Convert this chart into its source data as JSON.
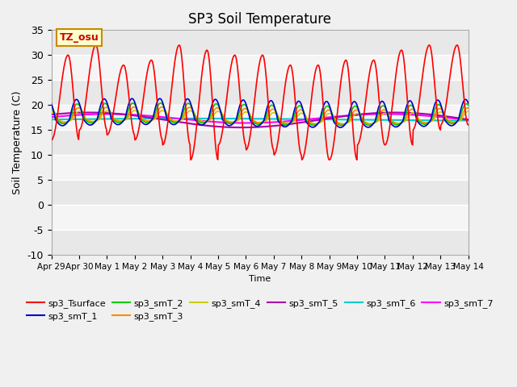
{
  "title": "SP3 Soil Temperature",
  "ylabel": "Soil Temperature (C)",
  "xlabel": "Time",
  "ylim": [
    -10,
    35
  ],
  "xlim": [
    0,
    15
  ],
  "background_color": "#d8d8d8",
  "fig_bg": "#f0f0f0",
  "tz_label": "TZ_osu",
  "tz_color": "#cc0000",
  "tz_bg": "#ffffcc",
  "tz_border": "#cc8800",
  "series_colors": {
    "sp3_Tsurface": "#ff0000",
    "sp3_smT_1": "#0000cc",
    "sp3_smT_2": "#00cc00",
    "sp3_smT_3": "#ff8800",
    "sp3_smT_4": "#cccc00",
    "sp3_smT_5": "#aa00aa",
    "sp3_smT_6": "#00cccc",
    "sp3_smT_7": "#ff00ff"
  },
  "xtick_labels": [
    "Apr 29",
    "Apr 30",
    "May 1",
    "May 2",
    "May 3",
    "May 4",
    "May 5",
    "May 6",
    "May 7",
    "May 8",
    "May 9",
    "May 10",
    "May 11",
    "May 12",
    "May 13",
    "May 14"
  ],
  "xtick_positions": [
    0,
    1,
    2,
    3,
    4,
    5,
    6,
    7,
    8,
    9,
    10,
    11,
    12,
    13,
    14,
    15
  ],
  "ytick_positions": [
    -10,
    -5,
    0,
    5,
    10,
    15,
    20,
    25,
    30,
    35
  ],
  "grid_color": "#ffffff",
  "legend_entries": [
    "sp3_Tsurface",
    "sp3_smT_1",
    "sp3_smT_2",
    "sp3_smT_3",
    "sp3_smT_4",
    "sp3_smT_5",
    "sp3_smT_6",
    "sp3_smT_7"
  ],
  "surface_base": 17.0,
  "surface_amplitude": 20.0,
  "sub_base": 17.0,
  "day_peak_offsets": [
    13,
    15,
    11,
    12,
    15,
    14,
    13,
    13,
    11,
    11,
    12,
    12,
    14,
    15,
    15
  ],
  "day_trough_offsets": [
    -4,
    -2,
    -3,
    -4,
    -5,
    -8,
    -5,
    -6,
    -7,
    -8,
    -8,
    -5,
    -5,
    -2,
    -1
  ]
}
